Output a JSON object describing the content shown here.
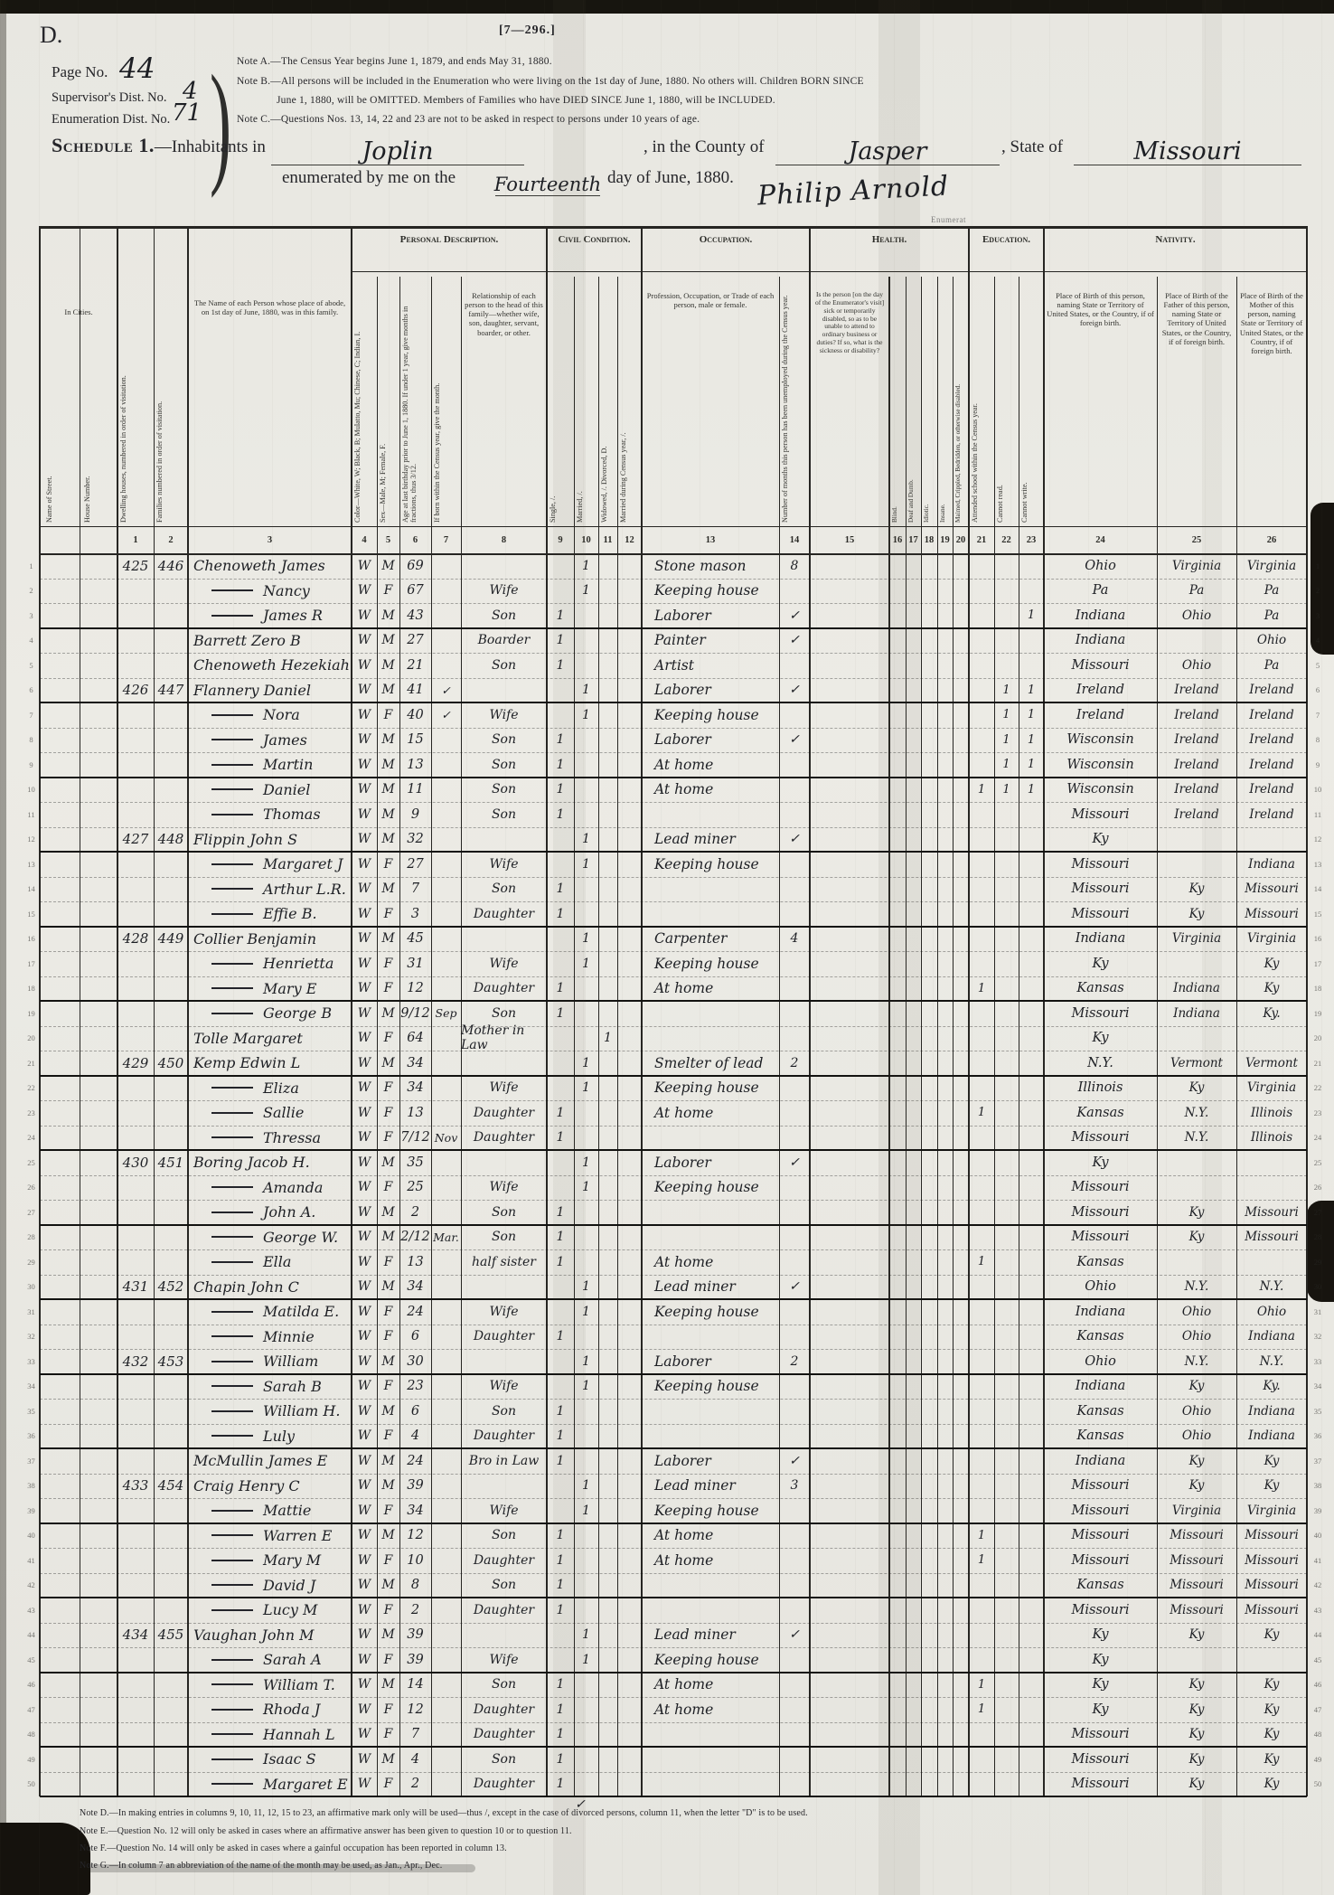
{
  "page": {
    "corner_letter": "D.",
    "form_number": "[7—296.]",
    "page_no_label": "Page No.",
    "page_no": "44",
    "supervisor_label": "Supervisor's Dist. No.",
    "supervisor_no": "4",
    "enumeration_label": "Enumeration Dist. No.",
    "enumeration_no": "71",
    "notes": [
      "Note A.—The Census Year begins June 1, 1879, and ends May 31, 1880.",
      "Note B.—All persons will be included in the Enumeration who were living on the 1st day of June, 1880.  No others will.  Children BORN SINCE",
      "June 1, 1880, will be OMITTED.  Members of Families who have DIED SINCE June 1, 1880, will be INCLUDED.",
      "Note C.—Questions Nos. 13, 14, 22 and 23 are not to be asked in respect to persons under 10 years of age."
    ]
  },
  "schedule": {
    "title": "Schedule 1.",
    "line1_pre": "—Inhabitants in",
    "place": "Joplin",
    "line1_mid": ", in the County of",
    "county": "Jasper",
    "line1_post": ", State of",
    "state": "Missouri",
    "line2_pre": "enumerated by me on the",
    "date_word": "Fourteenth",
    "line2_post": "day of June, 1880.",
    "signature": "Philip Arnold",
    "enumerator_fragment": "Enumerat",
    "stray_check": "✓"
  },
  "table": {
    "in_cities_label": "In Cities.",
    "street_head": "Name of Street.",
    "house_head": "House Number.",
    "groups": [
      {
        "label": "Personal Description."
      },
      {
        "label": "Civil Condition."
      },
      {
        "label": "Occupation."
      },
      {
        "label": "Health."
      },
      {
        "label": "Education."
      },
      {
        "label": "Nativity."
      }
    ],
    "columns": [
      {
        "n": "1",
        "head": "Dwelling houses, numbered in order of visitation."
      },
      {
        "n": "2",
        "head": "Families numbered in order of visitation."
      },
      {
        "n": "3",
        "head": "The Name of each Person whose place of abode, on 1st day of June, 1880, was in this family."
      },
      {
        "n": "4",
        "head": "Color—White, W; Black, B; Mulatto, Mu; Chinese, C; Indian, I."
      },
      {
        "n": "5",
        "head": "Sex—Male, M; Female, F."
      },
      {
        "n": "6",
        "head": "Age at last birthday prior to June 1, 1880. If under 1 year, give months in fractions, thus 3/12."
      },
      {
        "n": "7",
        "head": "If born within the Census year, give the month."
      },
      {
        "n": "8",
        "head": "Relationship of each person to the head of this family—whether wife, son, daughter, servant, boarder, or other."
      },
      {
        "n": "9",
        "head": "Single, /."
      },
      {
        "n": "10",
        "head": "Married, /."
      },
      {
        "n": "11",
        "head": "Widowed, /. Divorced, D."
      },
      {
        "n": "12",
        "head": "Married during Census year, /."
      },
      {
        "n": "13",
        "head": "Profession, Occupation, or Trade of each person, male or female."
      },
      {
        "n": "14",
        "head": "Number of months this person has been unemployed during the Census year."
      },
      {
        "n": "15",
        "head": "Is the person [on the day of the Enumerator's visit] sick or temporarily disabled, so as to be unable to attend to ordinary business or duties? If so, what is the sickness or disability?"
      },
      {
        "n": "16",
        "head": "Blind."
      },
      {
        "n": "17",
        "head": "Deaf and Dumb."
      },
      {
        "n": "18",
        "head": "Idiotic."
      },
      {
        "n": "19",
        "head": "Insane."
      },
      {
        "n": "20",
        "head": "Maimed, Crippled, Bedridden, or otherwise disabled."
      },
      {
        "n": "21",
        "head": "Attended school within the Census year."
      },
      {
        "n": "22",
        "head": "Cannot read."
      },
      {
        "n": "23",
        "head": "Cannot write."
      },
      {
        "n": "24",
        "head": "Place of Birth of this person, naming State or Territory of United States, or the Country, if of foreign birth."
      },
      {
        "n": "25",
        "head": "Place of Birth of the Father of this person, naming State or Territory of United States, or the Country, if of foreign birth."
      },
      {
        "n": "26",
        "head": "Place of Birth of the Mother of this person, naming State or Territory of United States, or the Country, if of foreign birth."
      }
    ],
    "rows": [
      {
        "d": "425",
        "f": "446",
        "nm": "Chenoweth James",
        "c": "W",
        "sx": "M",
        "ag": "69",
        "m10": "1",
        "occ": "Stone mason",
        "un": "8",
        "pb": "Ohio",
        "pf": "Virginia",
        "pm": "Virginia"
      },
      {
        "dt": true,
        "nm": "Nancy",
        "c": "W",
        "sx": "F",
        "ag": "67",
        "rel": "Wife",
        "m10": "1",
        "occ": "Keeping house",
        "pb": "Pa",
        "pf": "Pa",
        "pm": "Pa"
      },
      {
        "dt": true,
        "nm": "James R",
        "c": "W",
        "sx": "M",
        "ag": "43",
        "rel": "Son",
        "s9": "1",
        "occ": "Laborer",
        "un": "✓",
        "wr": "1",
        "pb": "Indiana",
        "pf": "Ohio",
        "pm": "Pa"
      },
      {
        "nm": "Barrett Zero B",
        "c": "W",
        "sx": "M",
        "ag": "27",
        "rel": "Boarder",
        "s9": "1",
        "occ": "Painter",
        "un": "✓",
        "pb": "Indiana",
        "pm": "Ohio"
      },
      {
        "nm": "Chenoweth Hezekiah",
        "c": "W",
        "sx": "M",
        "ag": "21",
        "rel": "Son",
        "s9": "1",
        "occ": "Artist",
        "pb": "Missouri",
        "pf": "Ohio",
        "pm": "Pa"
      },
      {
        "d": "426",
        "f": "447",
        "nm": "Flannery Daniel",
        "c": "W",
        "sx": "M",
        "ag": "41",
        "mo": "✓",
        "m10": "1",
        "occ": "Laborer",
        "un": "✓",
        "rd": "1",
        "wr": "1",
        "pb": "Ireland",
        "pf": "Ireland",
        "pm": "Ireland"
      },
      {
        "dt": true,
        "nm": "Nora",
        "c": "W",
        "sx": "F",
        "ag": "40",
        "mo": "✓",
        "rel": "Wife",
        "m10": "1",
        "occ": "Keeping house",
        "rd": "1",
        "wr": "1",
        "pb": "Ireland",
        "pf": "Ireland",
        "pm": "Ireland"
      },
      {
        "dt": true,
        "nm": "James",
        "c": "W",
        "sx": "M",
        "ag": "15",
        "rel": "Son",
        "s9": "1",
        "occ": "Laborer",
        "un": "✓",
        "rd": "1",
        "wr": "1",
        "pb": "Wisconsin",
        "pf": "Ireland",
        "pm": "Ireland"
      },
      {
        "dt": true,
        "nm": "Martin",
        "c": "W",
        "sx": "M",
        "ag": "13",
        "rel": "Son",
        "s9": "1",
        "occ": "At home",
        "rd": "1",
        "wr": "1",
        "pb": "Wisconsin",
        "pf": "Ireland",
        "pm": "Ireland"
      },
      {
        "dt": true,
        "nm": "Daniel",
        "c": "W",
        "sx": "M",
        "ag": "11",
        "rel": "Son",
        "s9": "1",
        "occ": "At home",
        "sch": "1",
        "rd": "1",
        "wr": "1",
        "pb": "Wisconsin",
        "pf": "Ireland",
        "pm": "Ireland"
      },
      {
        "dt": true,
        "nm": "Thomas",
        "c": "W",
        "sx": "M",
        "ag": "9",
        "rel": "Son",
        "s9": "1",
        "pb": "Missouri",
        "pf": "Ireland",
        "pm": "Ireland"
      },
      {
        "d": "427",
        "f": "448",
        "nm": "Flippin John S",
        "c": "W",
        "sx": "M",
        "ag": "32",
        "m10": "1",
        "occ": "Lead miner",
        "un": "✓",
        "pb": "Ky"
      },
      {
        "dt": true,
        "nm": "Margaret J",
        "c": "W",
        "sx": "F",
        "ag": "27",
        "rel": "Wife",
        "m10": "1",
        "occ": "Keeping house",
        "pb": "Missouri",
        "pm": "Indiana"
      },
      {
        "dt": true,
        "nm": "Arthur L.R.",
        "c": "W",
        "sx": "M",
        "ag": "7",
        "rel": "Son",
        "s9": "1",
        "pb": "Missouri",
        "pf": "Ky",
        "pm": "Missouri"
      },
      {
        "dt": true,
        "nm": "Effie B.",
        "c": "W",
        "sx": "F",
        "ag": "3",
        "rel": "Daughter",
        "s9": "1",
        "pb": "Missouri",
        "pf": "Ky",
        "pm": "Missouri"
      },
      {
        "d": "428",
        "f": "449",
        "nm": "Collier Benjamin",
        "c": "W",
        "sx": "M",
        "ag": "45",
        "m10": "1",
        "occ": "Carpenter",
        "un": "4",
        "pb": "Indiana",
        "pf": "Virginia",
        "pm": "Virginia"
      },
      {
        "dt": true,
        "nm": "Henrietta",
        "c": "W",
        "sx": "F",
        "ag": "31",
        "rel": "Wife",
        "m10": "1",
        "occ": "Keeping house",
        "pb": "Ky",
        "pm": "Ky"
      },
      {
        "dt": true,
        "nm": "Mary E",
        "c": "W",
        "sx": "F",
        "ag": "12",
        "rel": "Daughter",
        "s9": "1",
        "occ": "At home",
        "sch": "1",
        "pb": "Kansas",
        "pf": "Indiana",
        "pm": "Ky"
      },
      {
        "dt": true,
        "nm": "George B",
        "c": "W",
        "sx": "M",
        "ag": "9/12",
        "mo": "Sep",
        "rel": "Son",
        "s9": "1",
        "pb": "Missouri",
        "pf": "Indiana",
        "pm": "Ky."
      },
      {
        "nm": "Tolle Margaret",
        "c": "W",
        "sx": "F",
        "ag": "64",
        "rel": "Mother in Law",
        "w11": "1",
        "pb": "Ky"
      },
      {
        "d": "429",
        "f": "450",
        "nm": "Kemp Edwin L",
        "c": "W",
        "sx": "M",
        "ag": "34",
        "m10": "1",
        "occ": "Smelter of lead",
        "un": "2",
        "pb": "N.Y.",
        "pf": "Vermont",
        "pm": "Vermont"
      },
      {
        "dt": true,
        "nm": "Eliza",
        "c": "W",
        "sx": "F",
        "ag": "34",
        "rel": "Wife",
        "m10": "1",
        "occ": "Keeping house",
        "pb": "Illinois",
        "pf": "Ky",
        "pm": "Virginia"
      },
      {
        "dt": true,
        "nm": "Sallie",
        "c": "W",
        "sx": "F",
        "ag": "13",
        "rel": "Daughter",
        "s9": "1",
        "occ": "At home",
        "sch": "1",
        "pb": "Kansas",
        "pf": "N.Y.",
        "pm": "Illinois"
      },
      {
        "dt": true,
        "nm": "Thressa",
        "c": "W",
        "sx": "F",
        "ag": "7/12",
        "mo": "Nov",
        "rel": "Daughter",
        "s9": "1",
        "pb": "Missouri",
        "pf": "N.Y.",
        "pm": "Illinois"
      },
      {
        "d": "430",
        "f": "451",
        "nm": "Boring Jacob H.",
        "c": "W",
        "sx": "M",
        "ag": "35",
        "m10": "1",
        "occ": "Laborer",
        "un": "✓",
        "pb": "Ky"
      },
      {
        "dt": true,
        "nm": "Amanda",
        "c": "W",
        "sx": "F",
        "ag": "25",
        "rel": "Wife",
        "m10": "1",
        "occ": "Keeping house",
        "pb": "Missouri"
      },
      {
        "dt": true,
        "nm": "John A.",
        "c": "W",
        "sx": "M",
        "ag": "2",
        "rel": "Son",
        "s9": "1",
        "pb": "Missouri",
        "pf": "Ky",
        "pm": "Missouri"
      },
      {
        "dt": true,
        "nm": "George W.",
        "c": "W",
        "sx": "M",
        "ag": "2/12",
        "mo": "Mar.",
        "rel": "Son",
        "s9": "1",
        "pb": "Missouri",
        "pf": "Ky",
        "pm": "Missouri"
      },
      {
        "dt": true,
        "nm": "Ella",
        "c": "W",
        "sx": "F",
        "ag": "13",
        "rel": "half sister",
        "s9": "1",
        "occ": "At home",
        "sch": "1",
        "pb": "Kansas"
      },
      {
        "d": "431",
        "f": "452",
        "nm": "Chapin John C",
        "c": "W",
        "sx": "M",
        "ag": "34",
        "m10": "1",
        "occ": "Lead miner",
        "un": "✓",
        "pb": "Ohio",
        "pf": "N.Y.",
        "pm": "N.Y."
      },
      {
        "dt": true,
        "nm": "Matilda E.",
        "c": "W",
        "sx": "F",
        "ag": "24",
        "rel": "Wife",
        "m10": "1",
        "occ": "Keeping house",
        "pb": "Indiana",
        "pf": "Ohio",
        "pm": "Ohio"
      },
      {
        "dt": true,
        "nm": "Minnie",
        "c": "W",
        "sx": "F",
        "ag": "6",
        "rel": "Daughter",
        "s9": "1",
        "pb": "Kansas",
        "pf": "Ohio",
        "pm": "Indiana"
      },
      {
        "d": "432",
        "f": "453",
        "dt": true,
        "nm": "William",
        "c": "W",
        "sx": "M",
        "ag": "30",
        "m10": "1",
        "occ": "Laborer",
        "un": "2",
        "pb": "Ohio",
        "pf": "N.Y.",
        "pm": "N.Y."
      },
      {
        "dt": true,
        "nm": "Sarah B",
        "c": "W",
        "sx": "F",
        "ag": "23",
        "rel": "Wife",
        "m10": "1",
        "occ": "Keeping house",
        "pb": "Indiana",
        "pf": "Ky",
        "pm": "Ky."
      },
      {
        "dt": true,
        "nm": "William H.",
        "c": "W",
        "sx": "M",
        "ag": "6",
        "rel": "Son",
        "s9": "1",
        "pb": "Kansas",
        "pf": "Ohio",
        "pm": "Indiana"
      },
      {
        "dt": true,
        "nm": "Luly",
        "c": "W",
        "sx": "F",
        "ag": "4",
        "rel": "Daughter",
        "s9": "1",
        "pb": "Kansas",
        "pf": "Ohio",
        "pm": "Indiana"
      },
      {
        "nm": "McMullin James E",
        "c": "W",
        "sx": "M",
        "ag": "24",
        "rel": "Bro in Law",
        "s9": "1",
        "occ": "Laborer",
        "un": "✓",
        "pb": "Indiana",
        "pf": "Ky",
        "pm": "Ky"
      },
      {
        "d": "433",
        "f": "454",
        "nm": "Craig Henry C",
        "c": "W",
        "sx": "M",
        "ag": "39",
        "m10": "1",
        "occ": "Lead miner",
        "un": "3",
        "pb": "Missouri",
        "pf": "Ky",
        "pm": "Ky"
      },
      {
        "dt": true,
        "nm": "Mattie",
        "c": "W",
        "sx": "F",
        "ag": "34",
        "rel": "Wife",
        "m10": "1",
        "occ": "Keeping house",
        "pb": "Missouri",
        "pf": "Virginia",
        "pm": "Virginia"
      },
      {
        "dt": true,
        "nm": "Warren E",
        "c": "W",
        "sx": "M",
        "ag": "12",
        "rel": "Son",
        "s9": "1",
        "occ": "At home",
        "sch": "1",
        "pb": "Missouri",
        "pf": "Missouri",
        "pm": "Missouri"
      },
      {
        "dt": true,
        "nm": "Mary M",
        "c": "W",
        "sx": "F",
        "ag": "10",
        "rel": "Daughter",
        "s9": "1",
        "occ": "At home",
        "sch": "1",
        "pb": "Missouri",
        "pf": "Missouri",
        "pm": "Missouri"
      },
      {
        "dt": true,
        "nm": "David J",
        "c": "W",
        "sx": "M",
        "ag": "8",
        "rel": "Son",
        "s9": "1",
        "pb": "Kansas",
        "pf": "Missouri",
        "pm": "Missouri"
      },
      {
        "dt": true,
        "nm": "Lucy M",
        "c": "W",
        "sx": "F",
        "ag": "2",
        "rel": "Daughter",
        "s9": "1",
        "pb": "Missouri",
        "pf": "Missouri",
        "pm": "Missouri"
      },
      {
        "d": "434",
        "f": "455",
        "nm": "Vaughan John M",
        "c": "W",
        "sx": "M",
        "ag": "39",
        "m10": "1",
        "occ": "Lead miner",
        "un": "✓",
        "pb": "Ky",
        "pf": "Ky",
        "pm": "Ky"
      },
      {
        "dt": true,
        "nm": "Sarah A",
        "c": "W",
        "sx": "F",
        "ag": "39",
        "rel": "Wife",
        "m10": "1",
        "occ": "Keeping house",
        "pb": "Ky"
      },
      {
        "dt": true,
        "nm": "William T.",
        "c": "W",
        "sx": "M",
        "ag": "14",
        "rel": "Son",
        "s9": "1",
        "occ": "At home",
        "sch": "1",
        "pb": "Ky",
        "pf": "Ky",
        "pm": "Ky"
      },
      {
        "dt": true,
        "nm": "Rhoda J",
        "c": "W",
        "sx": "F",
        "ag": "12",
        "rel": "Daughter",
        "s9": "1",
        "occ": "At home",
        "sch": "1",
        "pb": "Ky",
        "pf": "Ky",
        "pm": "Ky"
      },
      {
        "dt": true,
        "nm": "Hannah L",
        "c": "W",
        "sx": "F",
        "ag": "7",
        "rel": "Daughter",
        "s9": "1",
        "pb": "Missouri",
        "pf": "Ky",
        "pm": "Ky"
      },
      {
        "dt": true,
        "nm": "Isaac S",
        "c": "W",
        "sx": "M",
        "ag": "4",
        "rel": "Son",
        "s9": "1",
        "pb": "Missouri",
        "pf": "Ky",
        "pm": "Ky"
      },
      {
        "dt": true,
        "nm": "Margaret E",
        "c": "W",
        "sx": "F",
        "ag": "2",
        "rel": "Daughter",
        "s9": "1",
        "pb": "Missouri",
        "pf": "Ky",
        "pm": "Ky"
      }
    ],
    "footnotes": [
      "Note D.—In making entries in columns 9, 10, 11, 12, 15 to 23, an affirmative mark only will be used—thus /, except in the case of divorced persons, column 11, when the letter \"D\" is to be used.",
      "Note E.—Question No. 12 will only be asked in cases where an affirmative answer has been given to question 10 or to question 11.",
      "Note F.—Question No. 14 will only be asked in cases where a gainful occupation has been reported in column 13.",
      "Note G.—In column 7 an abbreviation of the name of the month may be used, as Jan., Apr., Dec."
    ]
  }
}
